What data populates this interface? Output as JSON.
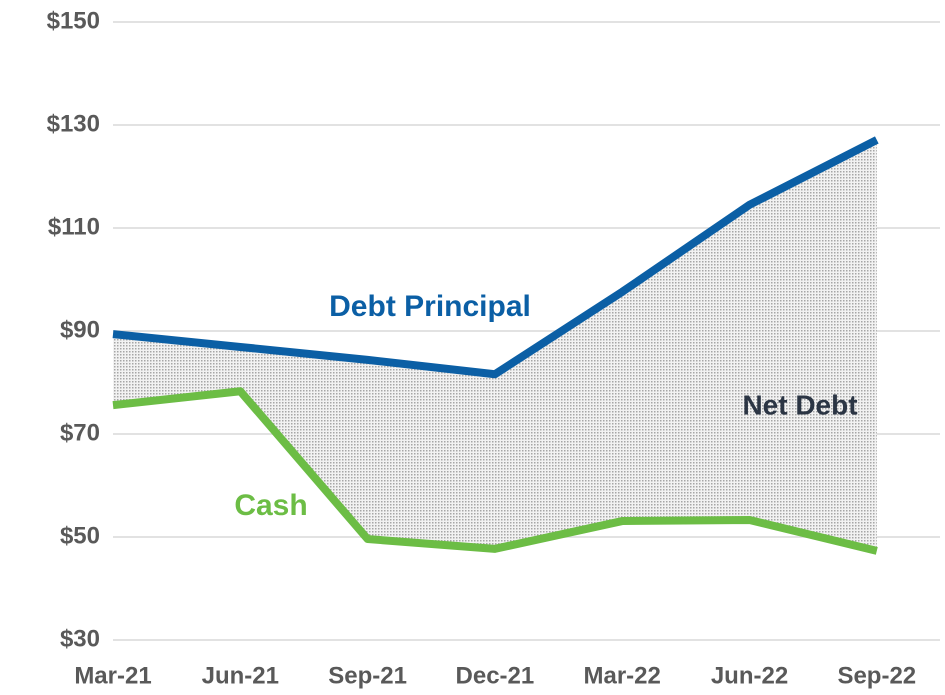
{
  "chart_data": {
    "type": "line",
    "categories": [
      "Mar-21",
      "Jun-21",
      "Sep-21",
      "Dec-21",
      "Mar-22",
      "Jun-22",
      "Sep-22"
    ],
    "series": [
      {
        "name": "Debt Principal",
        "color": "#0b5fa5",
        "values": [
          89.4,
          86.9,
          84.4,
          81.6,
          97.6,
          114.5,
          127.1
        ]
      },
      {
        "name": "Cash",
        "color": "#6cbd45",
        "values": [
          75.6,
          78.3,
          49.6,
          47.7,
          53.1,
          53.3,
          47.3
        ]
      }
    ],
    "annotation": "Net Debt",
    "ylim": [
      30,
      150
    ],
    "yticks": [
      {
        "value": 30,
        "label": "$30"
      },
      {
        "value": 50,
        "label": "$50"
      },
      {
        "value": 70,
        "label": "$70"
      },
      {
        "value": 90,
        "label": "$90"
      },
      {
        "value": 110,
        "label": "$110"
      },
      {
        "value": 130,
        "label": "$130"
      },
      {
        "value": 150,
        "label": "$150"
      }
    ],
    "grid": true
  }
}
